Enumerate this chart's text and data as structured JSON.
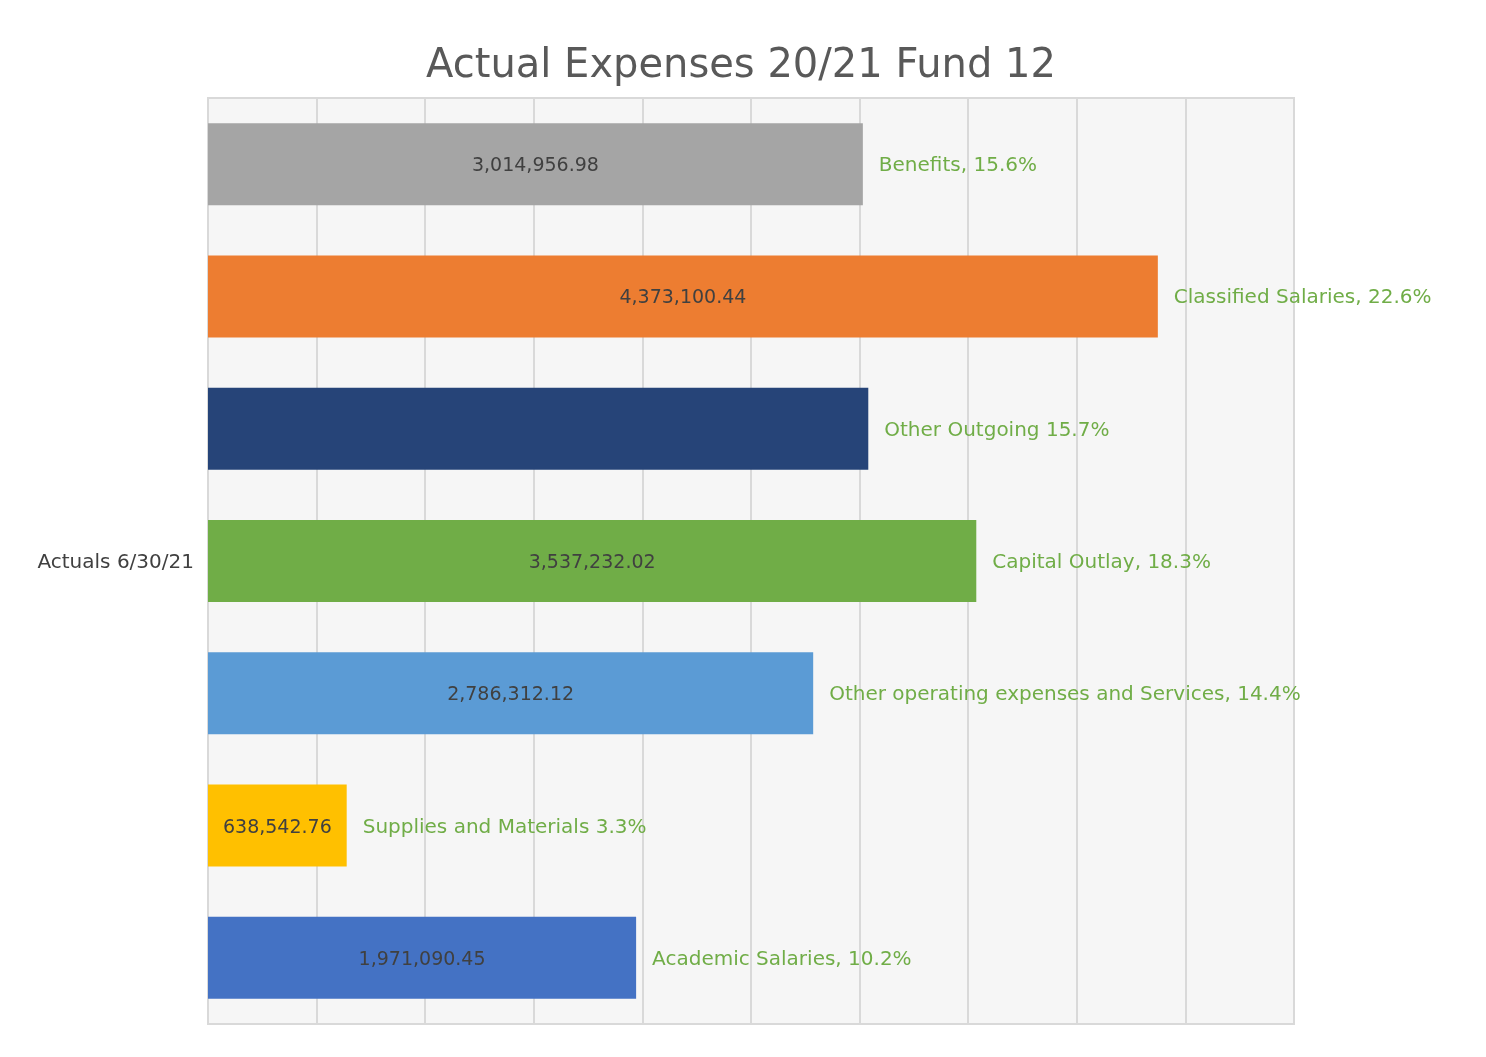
{
  "chart_data": {
    "type": "bar",
    "orientation": "horizontal",
    "title": "Actual Expenses 20/21 Fund 12",
    "ylabel": "Actuals 6/30/21",
    "categories": [
      null,
      null,
      null,
      null,
      null,
      null,
      null
    ],
    "values": [
      3014956.98,
      4373100.44,
      3040000,
      3537232.02,
      2786312.12,
      638542.76,
      1971090.45
    ],
    "colors": [
      "#a5a5a5",
      "#ed7d31",
      "#264478",
      "#70ad47",
      "#5b9bd5",
      "#ffc000",
      "#4472c4"
    ],
    "value_labels": [
      "3,014,956.98",
      "4,373,100.44",
      null,
      "3,537,232.02",
      "2,786,312.12",
      "638,542.76",
      "1,971,090.45"
    ],
    "annotations": [
      "Benefits, 15.6%",
      "Classified Salaries, 22.6%",
      "Other Outgoing 15.7%",
      "Capital Outlay, 18.3%",
      "Other operating expenses and Services, 14.4%",
      "Supplies and Materials 3.3%",
      "Academic Salaries, 10.2%"
    ],
    "xlim": [
      0,
      5000000
    ],
    "xticks": [
      {
        "value": 0,
        "label": null
      },
      {
        "value": 500000,
        "label": null
      },
      {
        "value": 1000000,
        "label": null
      },
      {
        "value": 1500000,
        "label": null
      },
      {
        "value": 2000000,
        "label": null
      },
      {
        "value": 2500000,
        "label": null
      },
      {
        "value": 3000000,
        "label": null
      },
      {
        "value": 3500000,
        "label": null
      },
      {
        "value": 4000000,
        "label": null
      },
      {
        "value": 4500000,
        "label": null
      },
      {
        "value": 5000000,
        "label": null
      }
    ],
    "grid": "x"
  }
}
